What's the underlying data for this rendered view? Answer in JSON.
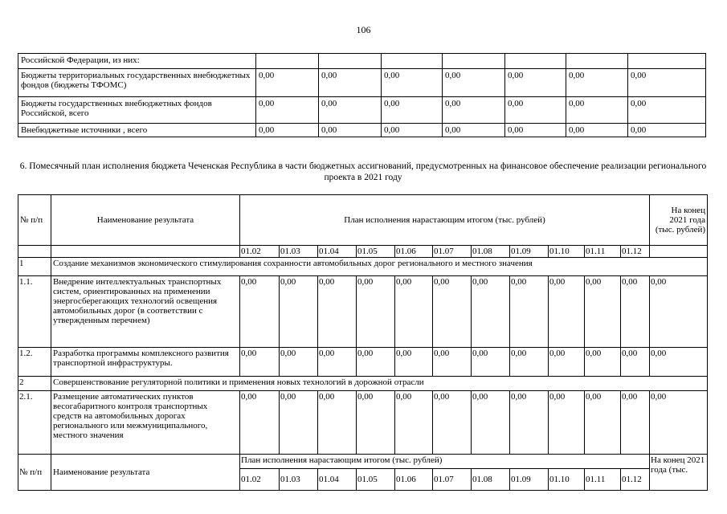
{
  "page_number": "106",
  "top_table": {
    "rows": [
      {
        "label": "Российской Федерации, из них:",
        "values": [
          "",
          "",
          "",
          "",
          "",
          "",
          ""
        ]
      },
      {
        "label": "Бюджеты территориальных государственных внебюджетных фондов (бюджеты ТФОМС)",
        "values": [
          "0,00",
          "0,00",
          "0,00",
          "0,00",
          "0,00",
          "0,00",
          "0,00"
        ]
      },
      {
        "label": "Бюджеты государственных внебюджетных фондов Российской, всего",
        "values": [
          "0,00",
          "0,00",
          "0,00",
          "0,00",
          "0,00",
          "0,00",
          "0,00"
        ]
      },
      {
        "label": " Внебюджетные источники , всего",
        "values": [
          "0,00",
          "0,00",
          "0,00",
          "0,00",
          "0,00",
          "0,00",
          "0,00"
        ]
      }
    ]
  },
  "section_title": "6. Помесячный план исполнения бюджета Чеченская Республика в части бюджетных ассигнований, предусмотренных на финансовое обеспечение реализации регионального проекта в 2021 году",
  "main_table": {
    "col_num": "№ п/п",
    "col_name": "Наименование результата",
    "col_plan": "План исполнения нарастающим итогом (тыс. рублей)",
    "col_end": "На конец 2021 года (тыс. рублей)",
    "months": [
      "01.02",
      "01.03",
      "01.04",
      "01.05",
      "01.06",
      "01.07",
      "01.08",
      "01.09",
      "01.10",
      "01.11",
      "01.12"
    ],
    "rows": [
      {
        "type": "group",
        "num": "1",
        "name": "Создание механизмов экономического стимулирования сохранности автомобильных дорог регионального и местного значения"
      },
      {
        "type": "item",
        "num": "1.1.",
        "name": "Внедрение интеллектуальных транспортных систем, ориентированных на применении энергосберегающих технологий освещения автомобильных дорог (в соответствии с утвержденным перечнем)",
        "values": [
          "0,00",
          "0,00",
          "0,00",
          "0,00",
          "0,00",
          "0,00",
          "0,00",
          "0,00",
          "0,00",
          "0,00",
          "0,00",
          "0,00"
        ]
      },
      {
        "type": "item",
        "num": "1.2.",
        "name": "Разработка программы комплексного развития транспортной инфраструктуры.",
        "values": [
          "0,00",
          "0,00",
          "0,00",
          "0,00",
          "0,00",
          "0,00",
          "0,00",
          "0,00",
          "0,00",
          "0,00",
          "0,00",
          "0,00"
        ]
      },
      {
        "type": "group",
        "num": "2",
        "name": "Совершенствование регуляторной политики и применения новых технологий в дорожной отрасли"
      },
      {
        "type": "item",
        "num": "2.1.",
        "name": "Размещение автоматических пунктов весогабаритного контроля транспортных средств на автомобильных дорогах регионального или межмуниципального, местного значения",
        "values": [
          "0,00",
          "0,00",
          "0,00",
          "0,00",
          "0,00",
          "0,00",
          "0,00",
          "0,00",
          "0,00",
          "0,00",
          "0,00",
          "0,00"
        ]
      }
    ],
    "repeat_header": {
      "num": "№ п/п",
      "name": "Наименование результата",
      "plan": "План исполнения нарастающим итогом (тыс. рублей)",
      "end": "На конец 2021 года (тыс."
    }
  }
}
